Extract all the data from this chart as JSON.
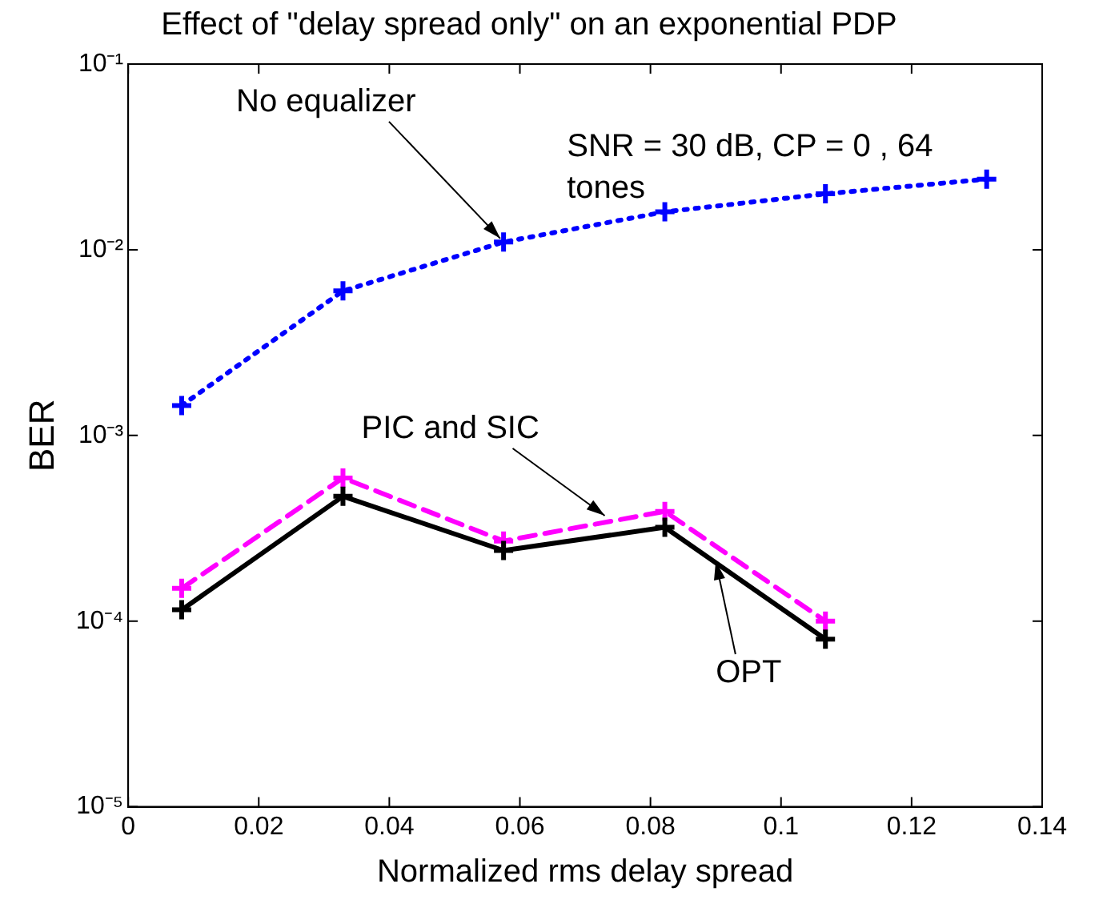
{
  "chart_data": {
    "type": "line",
    "title": "Effect of \"delay spread only\" on an exponential PDP",
    "xlabel": "Normalized rms delay spread",
    "ylabel": "BER",
    "x": [
      0.0082,
      0.0329,
      0.0575,
      0.0822,
      0.1068,
      0.1315
    ],
    "series": [
      {
        "color": "#0000ff",
        "line_style": "dotted",
        "values": [
          0.00145,
          0.006,
          0.011,
          0.016,
          0.02,
          0.024
        ]
      },
      {
        "color": "#ff00ff",
        "line_style": "dashed",
        "x": [
          0.0082,
          0.0329,
          0.0575,
          0.0822,
          0.1068
        ],
        "values": [
          0.00015,
          0.00059,
          0.00027,
          0.00039,
          0.0001
        ]
      },
      {
        "color": "#000000",
        "line_style": "solid",
        "x": [
          0.0082,
          0.0329,
          0.0575,
          0.0822,
          0.1068
        ],
        "values": [
          0.000115,
          0.00047,
          0.00024,
          0.00032,
          8e-05
        ]
      }
    ],
    "annotations": [
      {
        "text": "No equalizer",
        "x": 0.057,
        "y": 0.0115
      },
      "SNR = 30 dB, CP = 0 , 64 tones",
      {
        "text": "PIC and SIC",
        "x": 0.073,
        "y": 0.00037
      },
      {
        "text": "OPT",
        "x": 0.09,
        "y": 0.00021
      }
    ],
    "log": "y",
    "marker": "cross",
    "legend": false,
    "grid": false,
    "xlim": [
      0,
      0.14
    ],
    "xticks": [
      0,
      0.02,
      0.04,
      0.06,
      0.08,
      0.1,
      0.12,
      0.14
    ],
    "ylim": [
      1e-05,
      0.1
    ],
    "yticks": [
      {
        "value": 1e-05,
        "label": "10⁻⁵"
      },
      {
        "value": 0.0001,
        "label": "10⁻⁴"
      },
      {
        "value": 0.001,
        "label": "10⁻³"
      },
      {
        "value": 0.01,
        "label": "10⁻²"
      },
      {
        "value": 0.1,
        "label": "10⁻¹"
      }
    ]
  }
}
